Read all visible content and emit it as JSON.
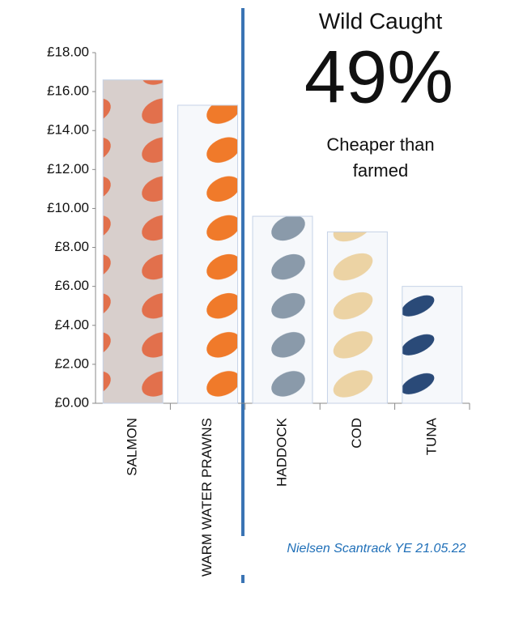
{
  "chart_data": {
    "type": "bar",
    "categories": [
      "SALMON",
      "WARM WATER PRAWNS",
      "HADDOCK",
      "COD",
      "TUNA"
    ],
    "values": [
      16.6,
      15.3,
      9.6,
      8.8,
      6.0
    ],
    "colors": [
      "#e2704c",
      "#f07a2a",
      "#8a9aaa",
      "#ecd3a4",
      "#2a4a78"
    ],
    "ylim": [
      0,
      18
    ],
    "yticks": [
      {
        "value": 0,
        "label": "£0.00"
      },
      {
        "value": 2,
        "label": "£2.00"
      },
      {
        "value": 4,
        "label": "£4.00"
      },
      {
        "value": 6,
        "label": "£6.00"
      },
      {
        "value": 8,
        "label": "£8.00"
      },
      {
        "value": 10,
        "label": "£10.00"
      },
      {
        "value": 12,
        "label": "£12.00"
      },
      {
        "value": 14,
        "label": "£14.00"
      },
      {
        "value": 16,
        "label": "£16.00"
      },
      {
        "value": 18,
        "label": "£18.00"
      }
    ],
    "annotations": [
      "Wild Caught",
      "49%",
      "Cheaper than",
      "farmed"
    ],
    "source": "Nielsen Scantrack YE 21.05.22"
  }
}
